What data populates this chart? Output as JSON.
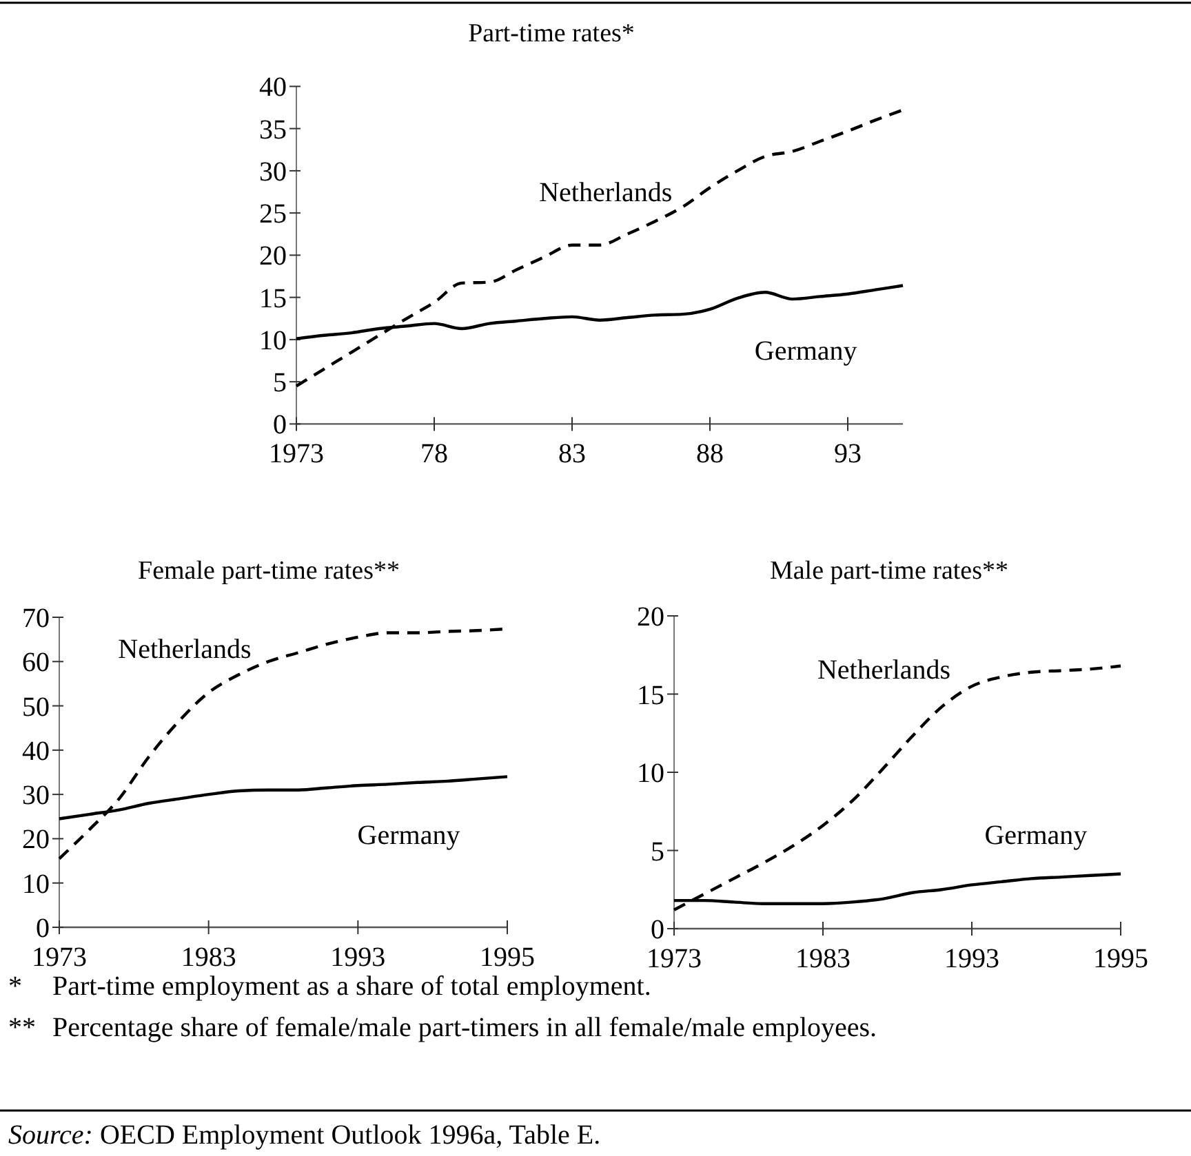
{
  "chart_data": [
    {
      "type": "line",
      "title": "Part-time rates*",
      "x": [
        1973,
        1974,
        1975,
        1976,
        1977,
        1978,
        1979,
        1980,
        1981,
        1982,
        1983,
        1984,
        1985,
        1986,
        1987,
        1988,
        1989,
        1990,
        1991,
        1992,
        1993,
        1994,
        1995
      ],
      "series": [
        {
          "name": "Netherlands",
          "color": "#000000",
          "line_style": "dashed",
          "values": [
            4.5,
            6.5,
            8.5,
            10.5,
            12.5,
            14.4,
            16.7,
            16.8,
            18.3,
            19.8,
            21.2,
            21.2,
            22.5,
            24,
            25.7,
            28,
            30,
            31.7,
            32.3,
            33.5,
            34.7,
            36,
            37.2
          ]
        },
        {
          "name": "Germany",
          "color": "#000000",
          "line_style": "solid",
          "values": [
            10.1,
            10.5,
            10.8,
            11.3,
            11.6,
            11.9,
            11.3,
            11.9,
            12.2,
            12.5,
            12.7,
            12.3,
            12.6,
            12.9,
            13,
            13.6,
            14.9,
            15.6,
            14.8,
            15.1,
            15.4,
            15.9,
            16.4
          ]
        }
      ],
      "xlim": [
        1973,
        1995
      ],
      "xticks": [
        1973,
        {
          "value": 1978,
          "label": "78"
        },
        {
          "value": 1983,
          "label": "83"
        },
        {
          "value": 1988,
          "label": "88"
        },
        {
          "value": 1993,
          "label": "93"
        }
      ],
      "ylim": [
        0,
        40
      ],
      "yticks": [
        0,
        5,
        10,
        15,
        20,
        25,
        30,
        35,
        40
      ],
      "grid": false
    },
    {
      "type": "line",
      "title": "Female part-time rates**",
      "categories": [
        "1973",
        null,
        null,
        null,
        null,
        "1983",
        null,
        null,
        null,
        null,
        "1993",
        null,
        null,
        null,
        null,
        "1995"
      ],
      "series": [
        {
          "name": "Netherlands",
          "color": "#000000",
          "line_style": "dashed",
          "values": [
            15.5,
            22,
            29,
            38.5,
            46.5,
            53,
            57,
            60,
            62,
            64,
            65.5,
            66.5,
            66.5,
            66.8,
            67,
            67.4
          ]
        },
        {
          "name": "Germany",
          "color": "#000000",
          "line_style": "solid",
          "values": [
            24.5,
            25.5,
            26.5,
            28,
            29,
            30,
            30.8,
            31,
            31,
            31.5,
            32,
            32.3,
            32.7,
            33,
            33.5,
            34
          ]
        }
      ],
      "ylim": [
        0,
        70
      ],
      "yticks": [
        0,
        10,
        20,
        30,
        40,
        50,
        60,
        70
      ],
      "grid": false
    },
    {
      "type": "line",
      "title": "Male part-time rates**",
      "categories": [
        "1973",
        null,
        null,
        null,
        null,
        "1983",
        null,
        null,
        null,
        null,
        "1993",
        null,
        null,
        null,
        null,
        "1995"
      ],
      "series": [
        {
          "name": "Netherlands",
          "color": "#000000",
          "line_style": "dashed",
          "values": [
            1.2,
            2.2,
            3.2,
            4.2,
            5.3,
            6.6,
            8.2,
            10.2,
            12.3,
            14.2,
            15.5,
            16.1,
            16.4,
            16.5,
            16.6,
            16.8
          ]
        },
        {
          "name": "Germany",
          "color": "#000000",
          "line_style": "solid",
          "values": [
            1.8,
            1.8,
            1.7,
            1.6,
            1.6,
            1.6,
            1.7,
            1.9,
            2.3,
            2.5,
            2.8,
            3,
            3.2,
            3.3,
            3.4,
            3.5
          ]
        }
      ],
      "ylim": [
        0,
        20
      ],
      "yticks": [
        0,
        5,
        10,
        15,
        20
      ],
      "grid": false,
      "annotations": [
        "*\tPart-time employment as a share of total employment.",
        "**\tPercentage share of female/male part-timers in all female/male employees.",
        "Source: OECD Employment Outlook 1996a, Table E."
      ]
    }
  ]
}
